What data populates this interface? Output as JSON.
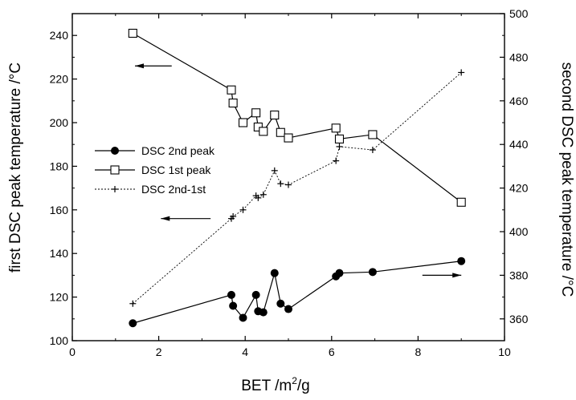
{
  "chart_data": {
    "type": "scatter",
    "xlabel": "BET /m",
    "xlabel_sup": "2",
    "xlabel_suffix": "/g",
    "ylabel_left": "first DSC peak temperature /°C",
    "ylabel_right": "second DSC peak temperature /°C",
    "xlim": [
      0,
      10
    ],
    "ylim_left": [
      100,
      250
    ],
    "ylim_right": [
      350,
      500
    ],
    "x_ticks": [
      0,
      2,
      4,
      6,
      8,
      10
    ],
    "y_left_ticks": [
      100,
      120,
      140,
      160,
      180,
      200,
      220,
      240
    ],
    "y_right_ticks": [
      360,
      380,
      400,
      420,
      440,
      460,
      480,
      500
    ],
    "grid": false,
    "legend_position": "center-left",
    "series": [
      {
        "name": "DSC 2nd peak",
        "axis": "right",
        "marker": "filled-circle",
        "line": "solid",
        "x": [
          1.4,
          3.68,
          3.72,
          3.95,
          4.25,
          4.3,
          4.42,
          4.68,
          4.82,
          5.0,
          6.1,
          6.18,
          6.95,
          9.0
        ],
        "y": [
          358,
          371,
          366,
          360.5,
          371,
          363.5,
          363,
          381,
          367,
          364.5,
          379.5,
          381,
          381.5,
          386.5
        ]
      },
      {
        "name": "DSC 1st peak",
        "axis": "left",
        "marker": "open-square",
        "line": "solid",
        "x": [
          1.4,
          3.68,
          3.72,
          3.95,
          4.25,
          4.3,
          4.42,
          4.68,
          4.82,
          5.0,
          6.1,
          6.18,
          6.95,
          9.0
        ],
        "y": [
          241,
          215,
          209,
          200,
          204.5,
          198,
          196,
          203.5,
          195.5,
          193,
          197.5,
          192.5,
          194.5,
          163.5
        ]
      },
      {
        "name": "DSC 2nd-1st",
        "axis": "left",
        "marker": "plus",
        "line": "dotted",
        "x": [
          1.4,
          3.68,
          3.72,
          3.95,
          4.25,
          4.3,
          4.42,
          4.68,
          4.82,
          5.0,
          6.1,
          6.18,
          6.95,
          9.0
        ],
        "y": [
          117,
          156,
          157,
          160,
          166.5,
          165.5,
          167,
          178,
          172,
          171.5,
          182.5,
          189,
          187.5,
          223
        ]
      }
    ],
    "arrows": [
      {
        "direction": "left",
        "axis": "left"
      },
      {
        "direction": "left",
        "axis": "left"
      },
      {
        "direction": "right",
        "axis": "right"
      }
    ]
  }
}
